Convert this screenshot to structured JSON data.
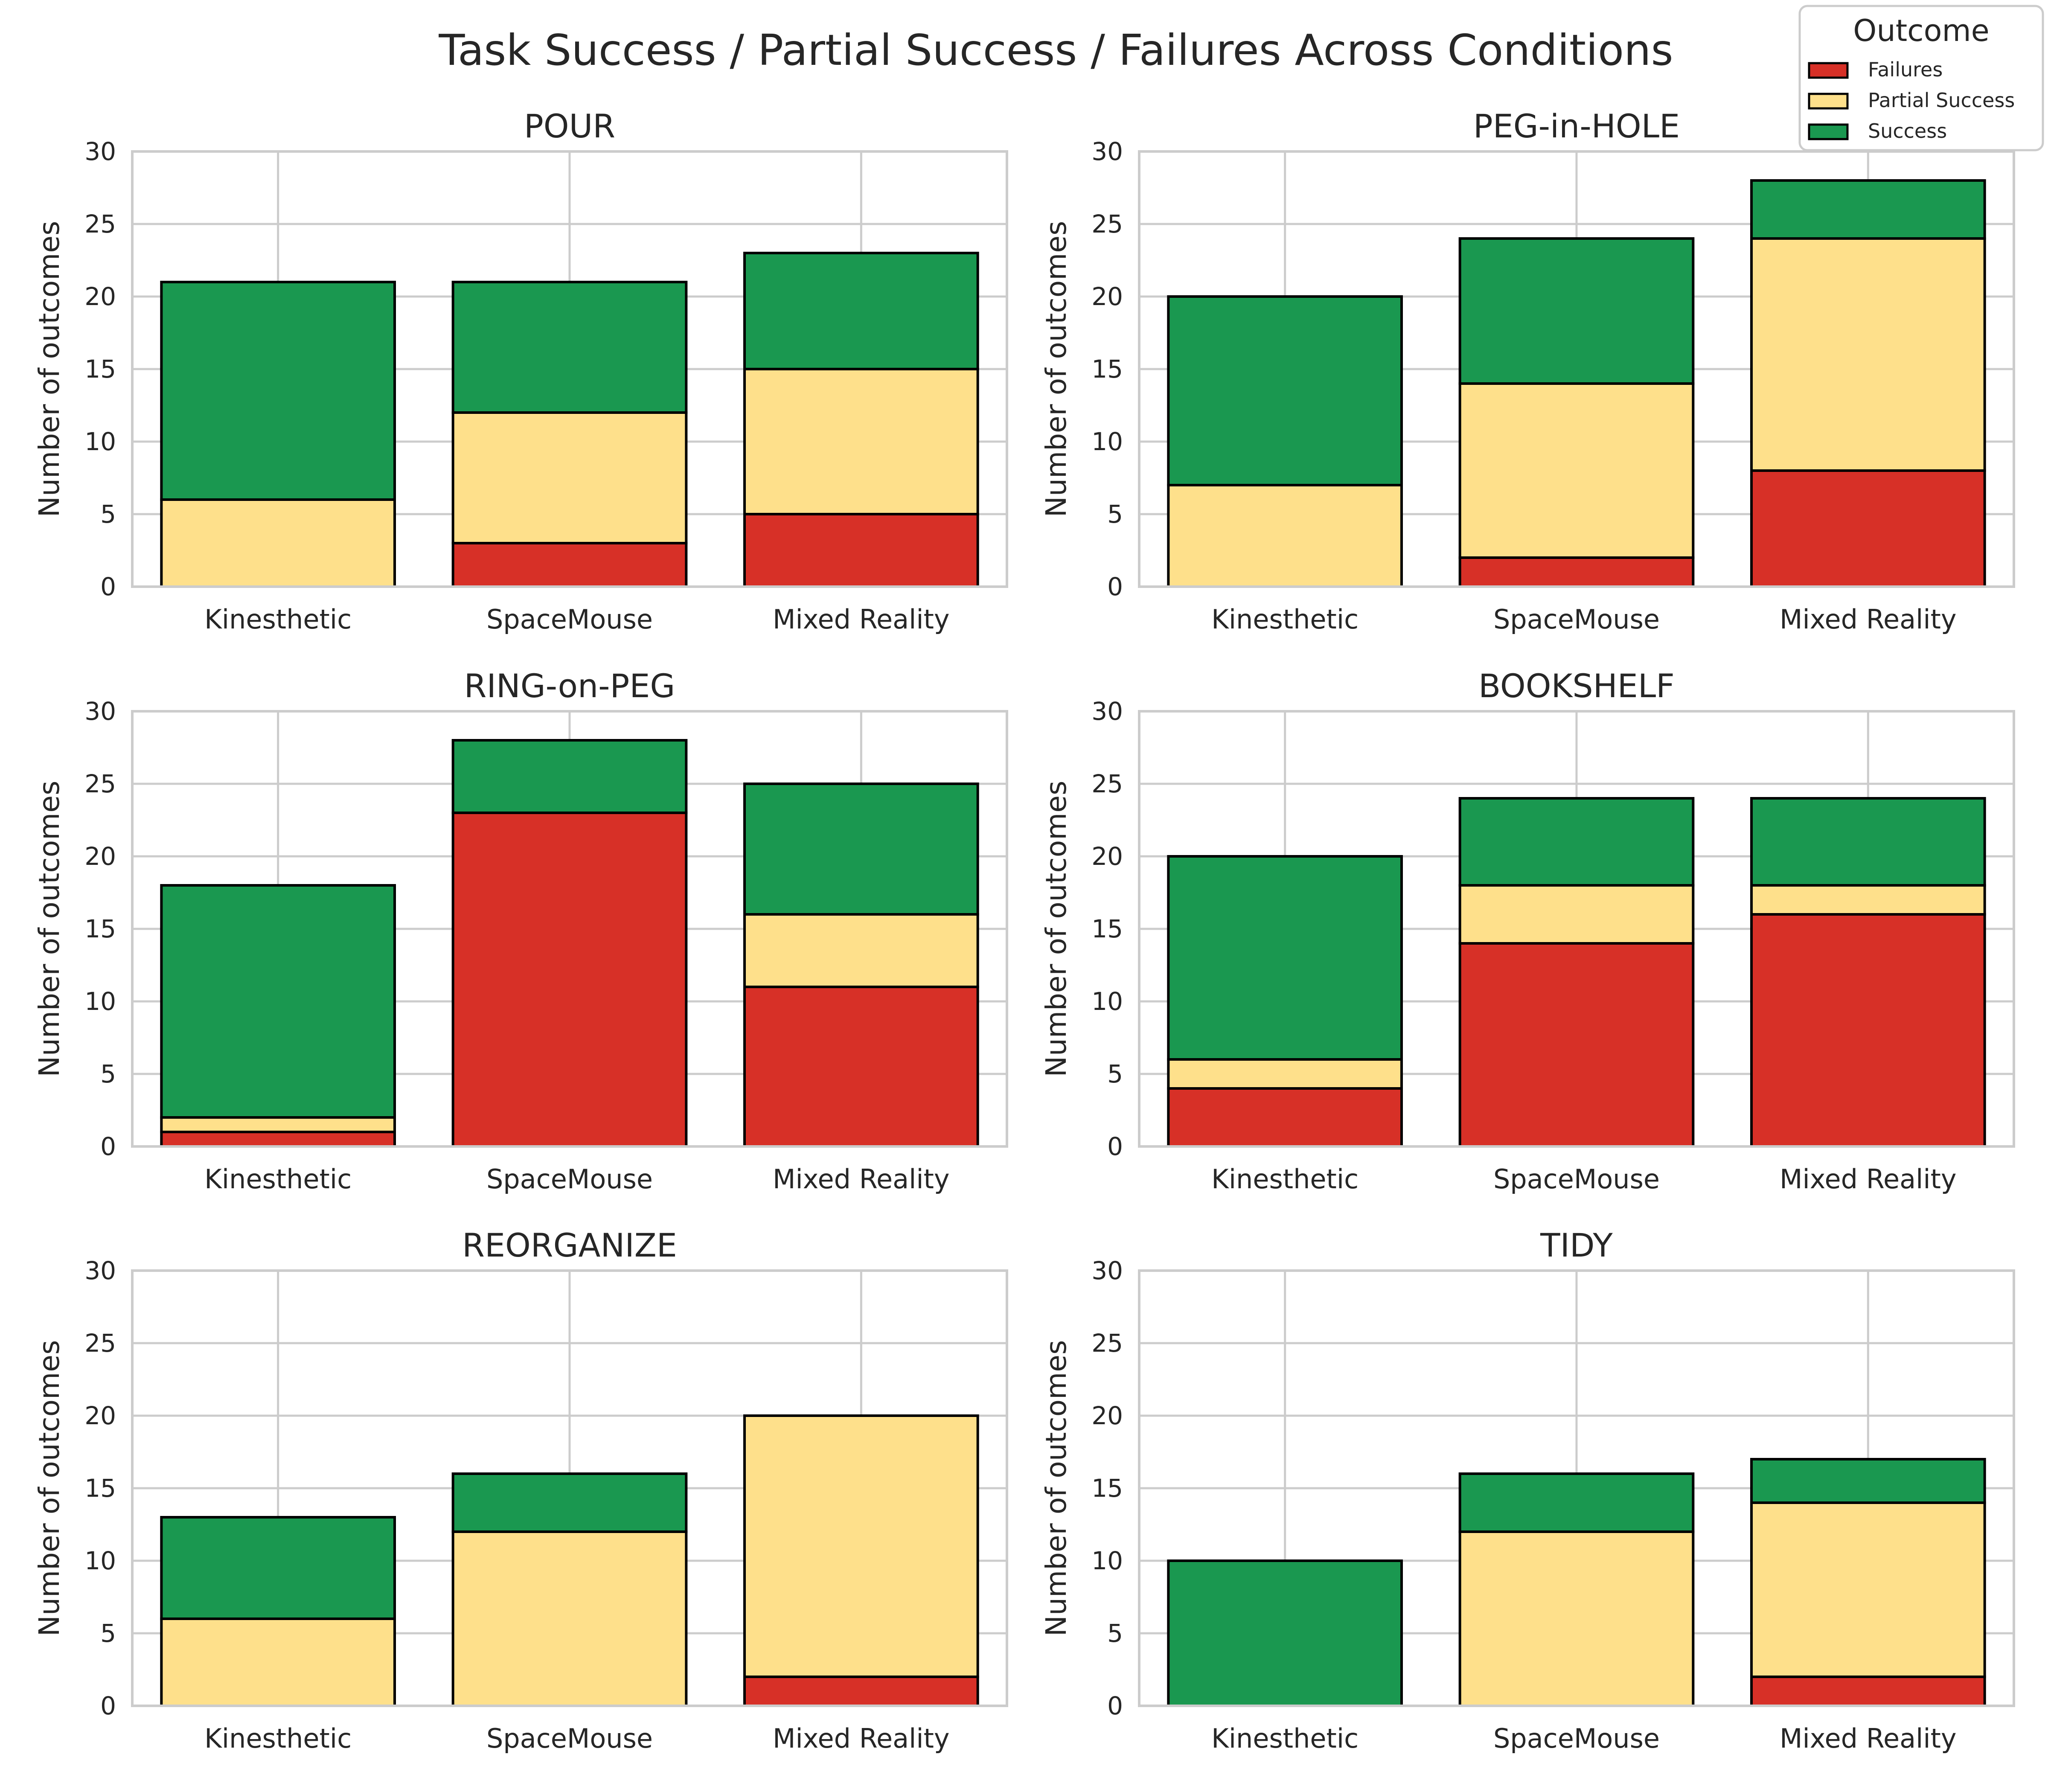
{
  "chart_data": {
    "type": "bar",
    "stacked": true,
    "title": "Task Success / Partial Success / Failures Across Conditions",
    "categories": [
      "Kinesthetic",
      "SpaceMouse",
      "Mixed Reality"
    ],
    "ylabel": "Number of outcomes",
    "ylim": [
      0,
      30
    ],
    "yticks": [
      0,
      5,
      10,
      15,
      20,
      25,
      30
    ],
    "grid": true,
    "legend": {
      "title": "Outcome",
      "position": "top-right",
      "entries": [
        {
          "name": "Failures",
          "color": "#d73027"
        },
        {
          "name": "Partial Success",
          "color": "#fee08b"
        },
        {
          "name": "Success",
          "color": "#1a9850"
        }
      ]
    },
    "panels": [
      {
        "title": "POUR",
        "series": [
          {
            "name": "Failures",
            "values": [
              0,
              3,
              5
            ]
          },
          {
            "name": "Partial Success",
            "values": [
              6,
              9,
              10
            ]
          },
          {
            "name": "Success",
            "values": [
              15,
              9,
              8
            ]
          }
        ]
      },
      {
        "title": "PEG-in-HOLE",
        "series": [
          {
            "name": "Failures",
            "values": [
              0,
              2,
              8
            ]
          },
          {
            "name": "Partial Success",
            "values": [
              7,
              12,
              16
            ]
          },
          {
            "name": "Success",
            "values": [
              13,
              10,
              4
            ]
          }
        ]
      },
      {
        "title": "RING-on-PEG",
        "series": [
          {
            "name": "Failures",
            "values": [
              1,
              23,
              11
            ]
          },
          {
            "name": "Partial Success",
            "values": [
              1,
              0,
              5
            ]
          },
          {
            "name": "Success",
            "values": [
              16,
              5,
              9
            ]
          }
        ]
      },
      {
        "title": "BOOKSHELF",
        "series": [
          {
            "name": "Failures",
            "values": [
              4,
              14,
              16
            ]
          },
          {
            "name": "Partial Success",
            "values": [
              2,
              4,
              2
            ]
          },
          {
            "name": "Success",
            "values": [
              14,
              6,
              6
            ]
          }
        ]
      },
      {
        "title": "REORGANIZE",
        "series": [
          {
            "name": "Failures",
            "values": [
              0,
              0,
              2
            ]
          },
          {
            "name": "Partial Success",
            "values": [
              6,
              12,
              18
            ]
          },
          {
            "name": "Success",
            "values": [
              7,
              4,
              0
            ]
          }
        ]
      },
      {
        "title": "TIDY",
        "series": [
          {
            "name": "Failures",
            "values": [
              0,
              0,
              2
            ]
          },
          {
            "name": "Partial Success",
            "values": [
              0,
              12,
              12
            ]
          },
          {
            "name": "Success",
            "values": [
              10,
              4,
              3
            ]
          }
        ]
      }
    ]
  }
}
